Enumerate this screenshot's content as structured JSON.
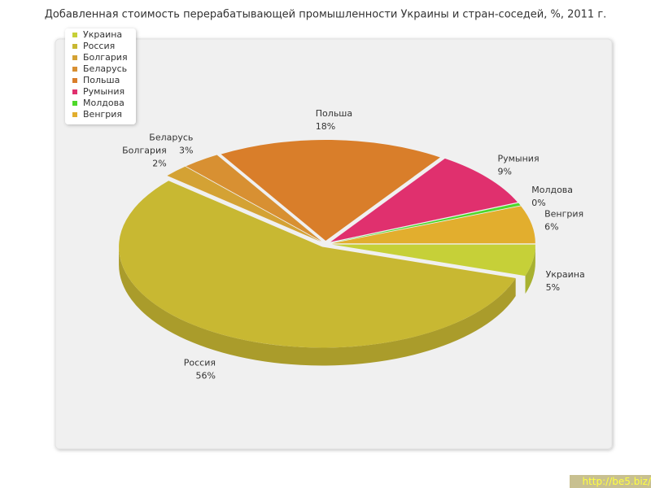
{
  "chart_data": {
    "type": "pie3d",
    "title": "Добавленная стоимость перерабатывающей промышленности Украины и стран-соседей, %, 2011 г.",
    "categories": [
      "Украина",
      "Россия",
      "Болгария",
      "Беларусь",
      "Польша",
      "Румыния",
      "Молдова",
      "Венгрия"
    ],
    "values": [
      5,
      56,
      2,
      3,
      18,
      9,
      0.4,
      6
    ],
    "value_labels": [
      "5%",
      "56%",
      "2%",
      "3%",
      "18%",
      "9%",
      "0%",
      "6%"
    ],
    "colors": [
      "#c6d038",
      "#c8b832",
      "#d4a234",
      "#d89032",
      "#d97e2a",
      "#e0306e",
      "#4ed82a",
      "#e2ae2e"
    ],
    "legend": "top-left"
  },
  "watermark": "http://be5.biz/"
}
